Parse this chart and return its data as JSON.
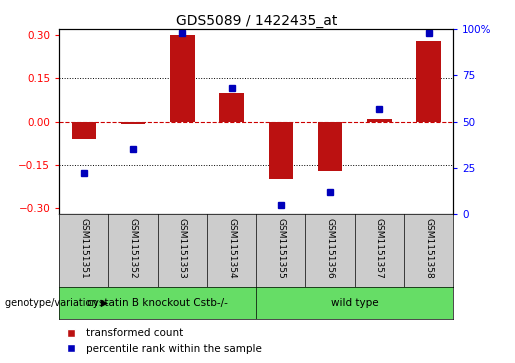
{
  "title": "GDS5089 / 1422435_at",
  "samples": [
    "GSM1151351",
    "GSM1151352",
    "GSM1151353",
    "GSM1151354",
    "GSM1151355",
    "GSM1151356",
    "GSM1151357",
    "GSM1151358"
  ],
  "red_bars": [
    -0.06,
    -0.01,
    0.3,
    0.1,
    -0.2,
    -0.17,
    0.01,
    0.28
  ],
  "blue_dots_pct": [
    22,
    35,
    98,
    68,
    5,
    12,
    57,
    98
  ],
  "ylim_left": [
    -0.32,
    0.32
  ],
  "ylim_right": [
    0,
    100
  ],
  "yticks_left": [
    -0.3,
    -0.15,
    0,
    0.15,
    0.3
  ],
  "yticks_right": [
    0,
    25,
    50,
    75,
    100
  ],
  "hlines_dotted": [
    -0.15,
    0.15
  ],
  "hline_dashed": 0,
  "group1_label": "cystatin B knockout Cstb-/-",
  "group2_label": "wild type",
  "group1_count": 4,
  "legend_red": "transformed count",
  "legend_blue": "percentile rank within the sample",
  "genotype_label": "genotype/variation",
  "bar_color": "#BB1111",
  "dot_color": "#0000BB",
  "bar_width": 0.5,
  "group1_color": "#66DD66",
  "group2_color": "#66DD66",
  "sample_box_color": "#CCCCCC",
  "plot_bg": "#FFFFFF",
  "hline_color_dotted": "#000000",
  "hline_color_dashed": "#CC0000"
}
